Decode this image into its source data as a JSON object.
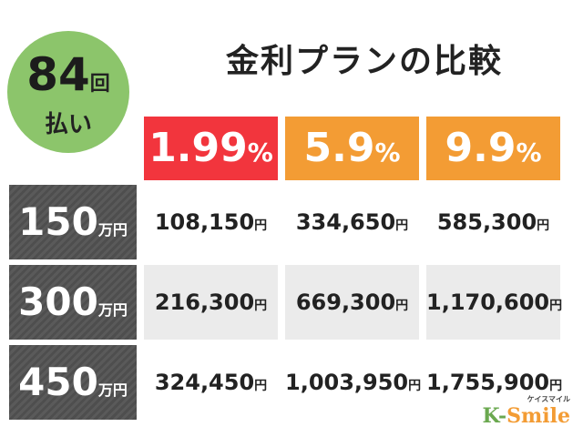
{
  "title": "金利プランの比較",
  "badge": {
    "count": "84",
    "count_unit": "回",
    "label": "払い"
  },
  "table": {
    "columns": [
      {
        "number": "1.99",
        "unit": "%"
      },
      {
        "number": "5.9",
        "unit": "%"
      },
      {
        "number": "9.9",
        "unit": "%"
      }
    ],
    "rows": [
      {
        "label": {
          "number": "150",
          "unit": "万円"
        },
        "cells": [
          {
            "amount": "108,150",
            "unit": "円"
          },
          {
            "amount": "334,650",
            "unit": "円"
          },
          {
            "amount": "585,300",
            "unit": "円"
          }
        ]
      },
      {
        "label": {
          "number": "300",
          "unit": "万円"
        },
        "cells": [
          {
            "amount": "216,300",
            "unit": "円"
          },
          {
            "amount": "669,300",
            "unit": "円"
          },
          {
            "amount": "1,170,600",
            "unit": "円"
          }
        ]
      },
      {
        "label": {
          "number": "450",
          "unit": "万円"
        },
        "cells": [
          {
            "amount": "324,450",
            "unit": "円"
          },
          {
            "amount": "1,003,950",
            "unit": "円"
          },
          {
            "amount": "1,755,900",
            "unit": "円"
          }
        ]
      }
    ]
  },
  "logo": {
    "kana": "ケイスマイル",
    "brand_k": "K-",
    "brand_s": "Smile"
  }
}
